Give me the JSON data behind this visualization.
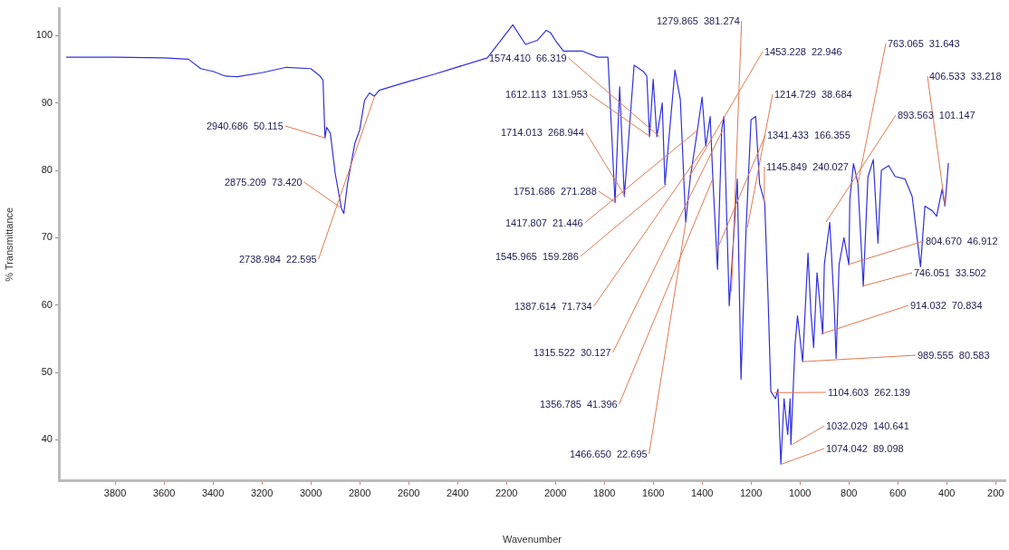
{
  "chart_data": {
    "type": "line",
    "xlabel": "Wavenumber",
    "ylabel": "% Transmittance",
    "xlim": [
      4030,
      160
    ],
    "xticks": [
      3800,
      3600,
      3400,
      3200,
      3000,
      2800,
      2600,
      2400,
      2200,
      2000,
      1800,
      1600,
      1400,
      1200,
      1000,
      800,
      600,
      400,
      200
    ],
    "ylim": [
      34,
      104
    ],
    "yticks": [
      40,
      50,
      60,
      70,
      80,
      90,
      100
    ],
    "grid": false,
    "legend": false,
    "marker": "none",
    "line_style": "solid",
    "series": [
      {
        "color": "#3030e0",
        "x": [
          4000,
          3800,
          3600,
          3500,
          3450,
          3400,
          3350,
          3300,
          3200,
          3100,
          3000,
          2965,
          2950,
          2942,
          2935,
          2920,
          2900,
          2875,
          2865,
          2850,
          2820,
          2800,
          2780,
          2760,
          2740,
          2720,
          2600,
          2493,
          2278,
          2174,
          2122,
          2074,
          2037,
          2019,
          2000,
          1967,
          1889,
          1826,
          1785,
          1778,
          1756,
          1737,
          1718,
          1678,
          1641,
          1626,
          1615,
          1600,
          1585,
          1563,
          1552,
          1511,
          1489,
          1467,
          1448,
          1419,
          1400,
          1385,
          1367,
          1356,
          1337,
          1320,
          1311,
          1289,
          1256,
          1241,
          1220,
          1200,
          1181,
          1165,
          1144,
          1130,
          1119,
          1100,
          1090,
          1078,
          1065,
          1050,
          1040,
          1037,
          1020,
          1010,
          989,
          967,
          955,
          944,
          930,
          907,
          900,
          878,
          860,
          852,
          840,
          820,
          800,
          796,
          781,
          763,
          741,
          722,
          700,
          681,
          667,
          637,
          611,
          570,
          541,
          522,
          507,
          489,
          459,
          441,
          419,
          407,
          393
        ],
        "values": [
          96.8,
          96.8,
          96.7,
          96.5,
          95.1,
          94.7,
          94.0,
          93.9,
          94.5,
          95.3,
          95.1,
          94.1,
          93.4,
          84.8,
          86.4,
          85.5,
          79.5,
          74.4,
          73.6,
          78,
          84,
          86,
          90.4,
          91.5,
          91,
          91.9,
          93.2,
          94.3,
          96.7,
          101.6,
          98.7,
          99.3,
          100.8,
          100.4,
          99.3,
          97.7,
          97.7,
          96.8,
          96.8,
          91.7,
          75.2,
          92.4,
          76.1,
          95.6,
          94.7,
          94,
          85,
          93.5,
          85,
          90,
          77.9,
          94.9,
          90.5,
          72.3,
          79,
          86,
          90.9,
          83.6,
          88,
          78.7,
          65.3,
          86,
          88,
          59.9,
          78.7,
          49,
          71.5,
          87.5,
          88,
          78,
          75.2,
          60.8,
          47.2,
          46.1,
          47.5,
          36.4,
          46.1,
          40.8,
          46.1,
          39.3,
          54.1,
          58.4,
          51.6,
          67.7,
          58.8,
          53.7,
          64.8,
          55.7,
          66.1,
          72.3,
          60,
          52.1,
          66,
          70,
          66,
          75.7,
          81,
          78.1,
          62.8,
          79,
          81.6,
          69.2,
          80,
          80.7,
          79.1,
          78.7,
          76.1,
          70.3,
          65.7,
          74.7,
          74,
          73.2,
          77.2,
          74.7,
          81.1
        ]
      }
    ],
    "annotations": [
      {
        "text": "2940.686  50.115",
        "x": 2940.686,
        "y": 84.8
      },
      {
        "text": "2875.209  73.420",
        "x": 2875.209,
        "y": 74.4
      },
      {
        "text": "2738.984  22.595",
        "x": 2738.984,
        "y": 91
      },
      {
        "text": "1279.865  381.274",
        "x": 1279.865,
        "y": 62
      },
      {
        "text": "1574.410  66.319",
        "x": 1574.41,
        "y": 85
      },
      {
        "text": "1612.113  131.953",
        "x": 1612.113,
        "y": 85
      },
      {
        "text": "1714.013  268.944",
        "x": 1714.013,
        "y": 76.1
      },
      {
        "text": "1751.686  271.288",
        "x": 1751.686,
        "y": 75.2
      },
      {
        "text": "1417.807  21.446",
        "x": 1417.807,
        "y": 86
      },
      {
        "text": "1545.965  159.286",
        "x": 1545.965,
        "y": 77.9
      },
      {
        "text": "1387.614  71.734",
        "x": 1387.614,
        "y": 83.6
      },
      {
        "text": "1315.522  30.127",
        "x": 1315.522,
        "y": 86
      },
      {
        "text": "1356.785  41.396",
        "x": 1356.785,
        "y": 78.7
      },
      {
        "text": "1466.650  22.695",
        "x": 1466.65,
        "y": 72.3
      },
      {
        "text": "1453.228  22.946",
        "x": 1453.228,
        "y": 79
      },
      {
        "text": "1214.729  38.684",
        "x": 1214.729,
        "y": 71.5
      },
      {
        "text": "1341.433  166.355",
        "x": 1341.433,
        "y": 68
      },
      {
        "text": "1145.849  240.027",
        "x": 1145.849,
        "y": 75.2
      },
      {
        "text": "763.065  31.643",
        "x": 763.065,
        "y": 78
      },
      {
        "text": "406.533  33.218",
        "x": 406.533,
        "y": 74.7
      },
      {
        "text": "893.563  101.147",
        "x": 893.563,
        "y": 72.3
      },
      {
        "text": "804.670  46.912",
        "x": 804.67,
        "y": 66
      },
      {
        "text": "746.051  33.502",
        "x": 746.051,
        "y": 62.8
      },
      {
        "text": "914.032  70.834",
        "x": 914.032,
        "y": 55.7
      },
      {
        "text": "989.555  80.583",
        "x": 989.555,
        "y": 51.6
      },
      {
        "text": "1104.603  262.139",
        "x": 1104.603,
        "y": 47
      },
      {
        "text": "1032.029  140.641",
        "x": 1032.029,
        "y": 39.3
      },
      {
        "text": "1074.042  89.098",
        "x": 1074.042,
        "y": 36.4
      }
    ]
  }
}
